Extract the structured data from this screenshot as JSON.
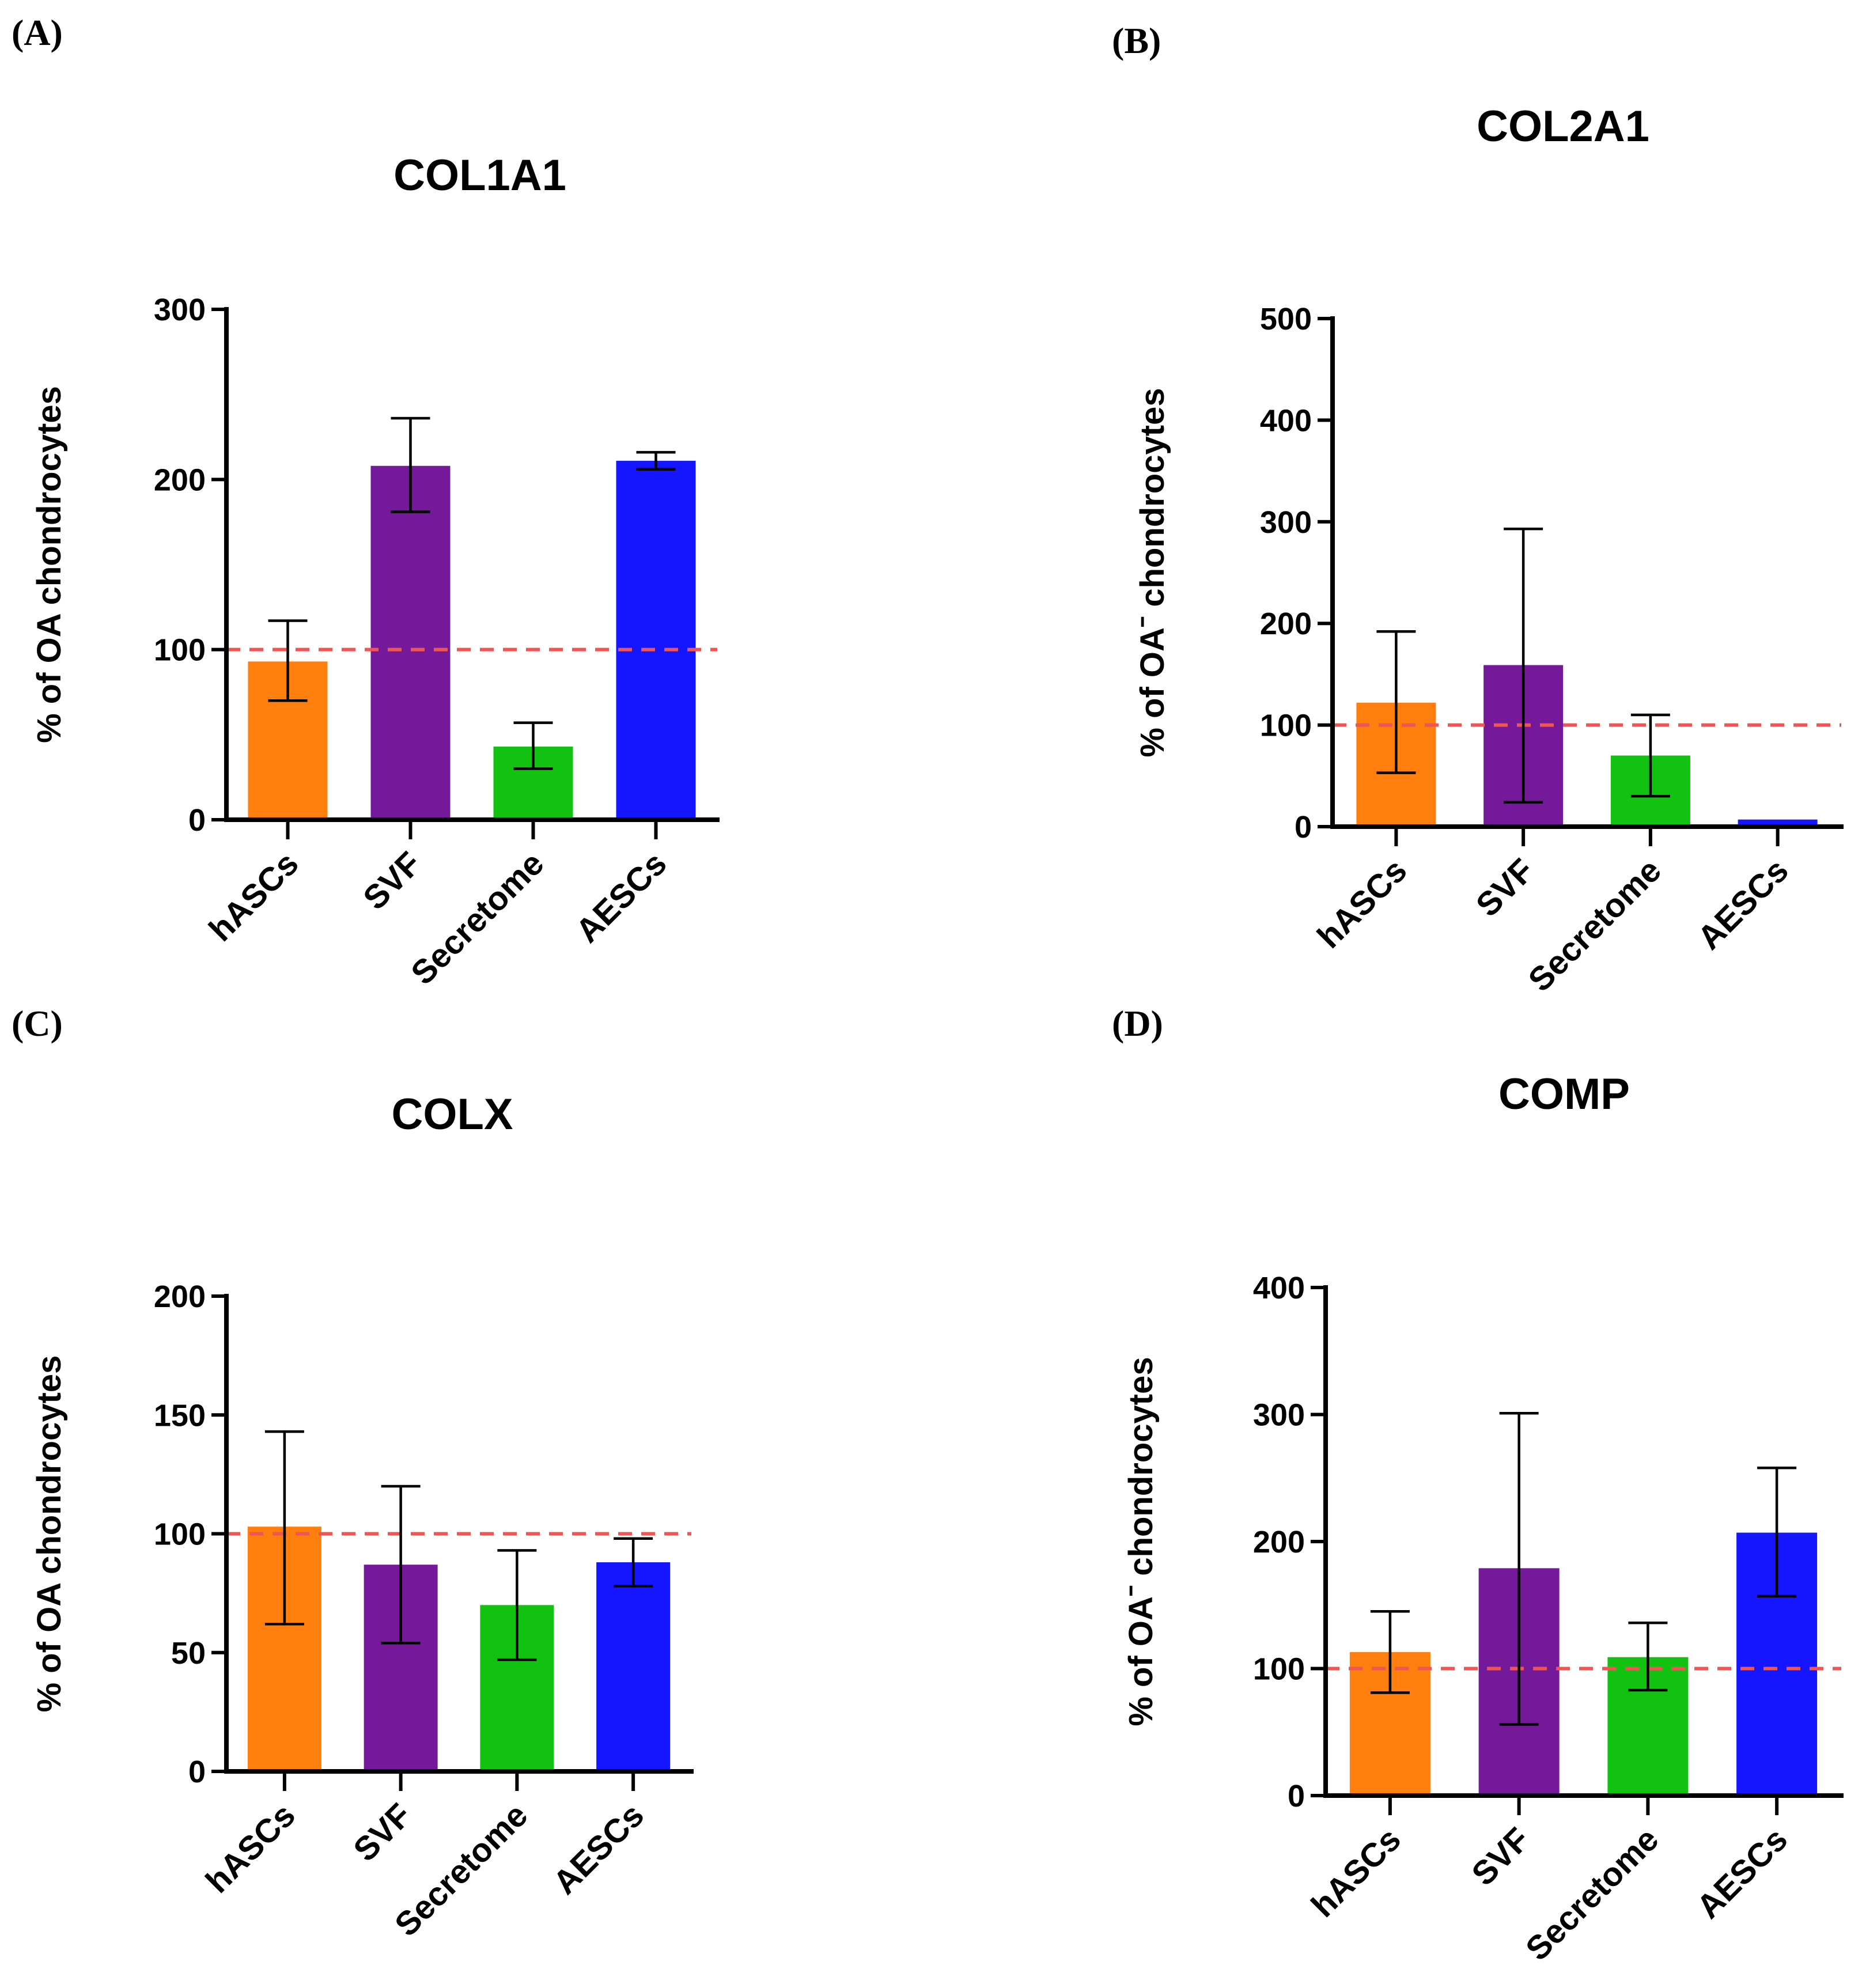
{
  "colors": {
    "hASCs": "#ff7f0e",
    "SVF": "#73199a",
    "Secretome": "#11c211",
    "AESCs": "#1515ff",
    "reference_line": "#f05555"
  },
  "chart_data": [
    {
      "panel": "(A)",
      "type": "bar",
      "title": "COL1A1",
      "ylabel": "% of OA  chondrocytes",
      "xlabel": "",
      "categories": [
        "hASCs",
        "SVF",
        "Secretome",
        "AESCs"
      ],
      "values": [
        93,
        208,
        43,
        211
      ],
      "error_low": [
        70,
        181,
        30,
        206
      ],
      "error_high": [
        117,
        236,
        57,
        216
      ],
      "ylim": [
        0,
        300
      ],
      "yticks": [
        0,
        100,
        200,
        300
      ],
      "reference_line": 100
    },
    {
      "panel": "(B)",
      "type": "bar",
      "title": "COL2A1",
      "ylabel": "% of OAˉ chondrocytes",
      "xlabel": "",
      "categories": [
        "hASCs",
        "SVF",
        "Secretome",
        "AESCs"
      ],
      "values": [
        122,
        159,
        70,
        7
      ],
      "error_low": [
        53,
        24,
        30,
        7
      ],
      "error_high": [
        192,
        293,
        110,
        7
      ],
      "ylim": [
        0,
        500
      ],
      "yticks": [
        0,
        100,
        200,
        300,
        400,
        500
      ],
      "reference_line": 100
    },
    {
      "panel": "(C)",
      "type": "bar",
      "title": "COLX",
      "ylabel": "% of OA  chondrocytes",
      "xlabel": "",
      "categories": [
        "hASCs",
        "SVF",
        "Secretome",
        "AESCs"
      ],
      "values": [
        103,
        87,
        70,
        88
      ],
      "error_low": [
        62,
        54,
        47,
        78
      ],
      "error_high": [
        143,
        120,
        93,
        98
      ],
      "ylim": [
        0,
        200
      ],
      "yticks": [
        0,
        50,
        100,
        150,
        200
      ],
      "reference_line": 100
    },
    {
      "panel": "(D)",
      "type": "bar",
      "title": "COMP",
      "ylabel": "% of OAˉ chondrocytes",
      "xlabel": "",
      "categories": [
        "hASCs",
        "SVF",
        "Secretome",
        "AESCs"
      ],
      "values": [
        113,
        179,
        109,
        207
      ],
      "error_low": [
        81,
        56,
        83,
        157
      ],
      "error_high": [
        145,
        301,
        136,
        258
      ],
      "ylim": [
        0,
        400
      ],
      "yticks": [
        0,
        100,
        200,
        300,
        400
      ],
      "reference_line": 100
    }
  ]
}
